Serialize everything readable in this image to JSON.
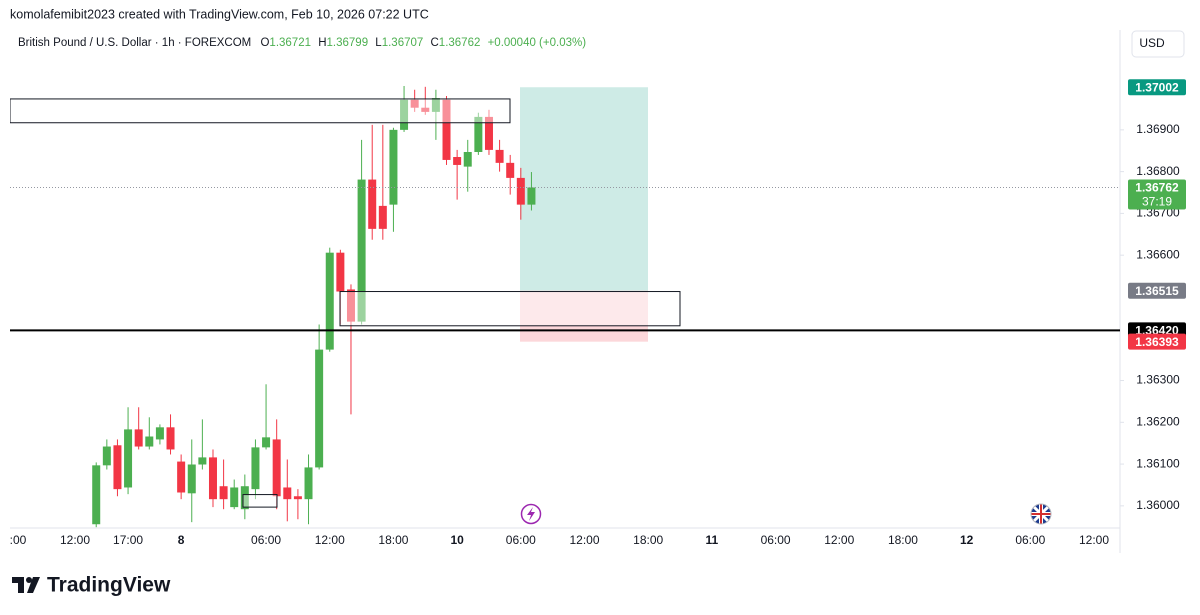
{
  "header": {
    "attribution": "komolafemibit2023 created with TradingView.com, Feb 10, 2026 07:22 UTC",
    "symbol": "British Pound / U.S. Dollar · 1h · FOREXCOM",
    "legend_keys": [
      "O",
      "H",
      "L",
      "C"
    ],
    "change": "+0.00040 (+0.03%)",
    "currency": "USD"
  },
  "footer": {
    "brand": "TradingView"
  },
  "chart_data": {
    "type": "candlestick",
    "up_color": "#4caf50",
    "down_color": "#f23645",
    "grid": false,
    "categories": [
      ":00",
      null,
      null,
      null,
      null,
      null,
      "12:00",
      null,
      null,
      null,
      null,
      "17:00",
      null,
      null,
      null,
      null,
      "8",
      null,
      null,
      null,
      null,
      null,
      null,
      null,
      "06:00",
      null,
      null,
      null,
      null,
      null,
      "12:00",
      null,
      null,
      null,
      null,
      null,
      "18:00",
      null,
      null,
      null,
      null,
      null,
      "10",
      null,
      null,
      null,
      null,
      null,
      "06:00",
      null,
      null,
      null,
      null,
      null,
      "12:00",
      null,
      null,
      null,
      null,
      null,
      "18:00",
      null,
      null,
      null,
      null,
      null,
      "11",
      null,
      null,
      null,
      null,
      null,
      "06:00",
      null,
      null,
      null,
      null,
      null,
      "12:00",
      null,
      null,
      null,
      null,
      null,
      "18:00",
      null,
      null,
      null,
      null,
      null,
      "12",
      null,
      null,
      null,
      null,
      null,
      "06:00",
      null,
      null,
      null,
      null,
      null,
      "12:00",
      null,
      null
    ],
    "open": [
      null,
      null,
      null,
      null,
      null,
      null,
      null,
      null,
      1.35956,
      1.36097,
      1.36145,
      1.36044,
      1.36183,
      1.36142,
      1.36159,
      1.36188,
      1.36106,
      1.3603,
      1.36099,
      1.36116,
      1.36047,
      1.35997,
      1.35992,
      1.3604,
      1.3614,
      1.36159,
      1.36044,
      1.36023,
      1.36016,
      1.36092,
      1.36374,
      1.36606,
      1.36518,
      1.36441,
      1.36781,
      1.36718,
      1.36721,
      1.369,
      1.36972,
      1.36953,
      1.36943,
      1.36972,
      1.36835,
      1.36812,
      1.36847,
      1.36931,
      1.36852,
      1.36821,
      1.36785,
      1.36721,
      null,
      null,
      null,
      null,
      null,
      null,
      null,
      null,
      null,
      null,
      null,
      null,
      null,
      null,
      null,
      null,
      null,
      null,
      null,
      null,
      null,
      null,
      null,
      null,
      null,
      null,
      null,
      null,
      null,
      null,
      null,
      null,
      null,
      null,
      null,
      null,
      null,
      null,
      null,
      null,
      null,
      null,
      null,
      null,
      null,
      null,
      null,
      null,
      null,
      null,
      null,
      null,
      null,
      null,
      null
    ],
    "high": [
      null,
      null,
      null,
      null,
      null,
      null,
      null,
      null,
      1.36104,
      1.36159,
      1.36159,
      1.36236,
      1.36236,
      1.36212,
      1.36195,
      1.36219,
      1.36123,
      1.36159,
      1.36207,
      1.36135,
      1.36111,
      1.36063,
      1.36075,
      1.36159,
      1.36291,
      1.36207,
      1.36111,
      1.3604,
      1.36123,
      1.36434,
      1.36618,
      1.36613,
      1.3653,
      1.36876,
      1.36912,
      1.36912,
      1.36905,
      1.37005,
      1.36996,
      1.37003,
      1.36996,
      1.36981,
      1.36852,
      1.36876,
      1.36941,
      1.36948,
      1.36876,
      1.3684,
      1.36809,
      1.36799,
      null,
      null,
      null,
      null,
      null,
      null,
      null,
      null,
      null,
      null,
      null,
      null,
      null,
      null,
      null,
      null,
      null,
      null,
      null,
      null,
      null,
      null,
      null,
      null,
      null,
      null,
      null,
      null,
      null,
      null,
      null,
      null,
      null,
      null,
      null,
      null,
      null,
      null,
      null,
      null,
      null,
      null,
      null,
      null,
      null,
      null,
      null,
      null,
      null,
      null,
      null,
      null,
      null,
      null,
      null
    ],
    "low": [
      null,
      null,
      null,
      null,
      null,
      null,
      null,
      null,
      1.35949,
      1.36087,
      1.36023,
      1.36028,
      1.36135,
      1.36135,
      1.36147,
      1.36123,
      1.36016,
      1.35961,
      1.36087,
      1.35997,
      1.35992,
      1.35992,
      1.35968,
      1.36016,
      1.36135,
      1.35992,
      1.35963,
      1.35968,
      1.35956,
      1.36087,
      1.36369,
      1.36434,
      1.36219,
      1.36434,
      1.36637,
      1.36637,
      1.36656,
      1.36895,
      1.36943,
      1.36936,
      1.36876,
      1.36816,
      1.36733,
      1.36752,
      1.3684,
      1.3684,
      1.368,
      1.36745,
      1.36685,
      1.36707,
      null,
      null,
      null,
      null,
      null,
      null,
      null,
      null,
      null,
      null,
      null,
      null,
      null,
      null,
      null,
      null,
      null,
      null,
      null,
      null,
      null,
      null,
      null,
      null,
      null,
      null,
      null,
      null,
      null,
      null,
      null,
      null,
      null,
      null,
      null,
      null,
      null,
      null,
      null,
      null,
      null,
      null,
      null,
      null,
      null,
      null,
      null,
      null,
      null,
      null,
      null,
      null,
      null,
      null,
      null
    ],
    "close": [
      null,
      null,
      null,
      null,
      null,
      null,
      null,
      null,
      1.36097,
      1.36142,
      1.3604,
      1.36183,
      1.36142,
      1.36166,
      1.36188,
      1.36135,
      1.36032,
      1.36099,
      1.36116,
      1.36016,
      1.36016,
      1.36044,
      1.36047,
      1.3614,
      1.36164,
      1.36023,
      1.36016,
      1.36016,
      1.36092,
      1.36374,
      1.36606,
      1.36513,
      1.36441,
      1.36781,
      1.36663,
      1.36663,
      1.369,
      1.36972,
      1.36953,
      1.36943,
      1.36976,
      1.36828,
      1.36816,
      1.36847,
      1.36931,
      1.36852,
      1.36821,
      1.36785,
      1.36721,
      1.36762,
      null,
      null,
      null,
      null,
      null,
      null,
      null,
      null,
      null,
      null,
      null,
      null,
      null,
      null,
      null,
      null,
      null,
      null,
      null,
      null,
      null,
      null,
      null,
      null,
      null,
      null,
      null,
      null,
      null,
      null,
      null,
      null,
      null,
      null,
      null,
      null,
      null,
      null,
      null,
      null,
      null,
      null,
      null,
      null,
      null,
      null,
      null,
      null,
      null,
      null,
      null,
      null,
      null,
      null,
      null
    ],
    "ylim": [
      1.35947,
      1.37139
    ],
    "yticks": [
      {
        "value": 1.369,
        "label": "1.36900"
      },
      {
        "value": 1.368,
        "label": "1.36800"
      },
      {
        "value": 1.367,
        "label": "1.36700"
      },
      {
        "value": 1.366,
        "label": "1.36600"
      },
      {
        "value": 1.363,
        "label": "1.36300"
      },
      {
        "value": 1.362,
        "label": "1.36200"
      },
      {
        "value": 1.361,
        "label": "1.36100"
      },
      {
        "value": 1.36,
        "label": "1.36000"
      }
    ],
    "countdown": "37:19",
    "target": 1.37002,
    "entry": 1.36515,
    "stop": 1.36393,
    "target_color": "#089981",
    "stop_color": "#f23645",
    "entry_color": "#787b86",
    "hline": {
      "value": 1.3642,
      "label": "1.36420"
    },
    "zones": [
      {
        "top": 1.36974,
        "bottom": 1.36917
      },
      {
        "top": 1.36513,
        "bottom": 1.36431
      },
      {
        "top": 1.36027,
        "bottom": 1.35997
      }
    ]
  }
}
